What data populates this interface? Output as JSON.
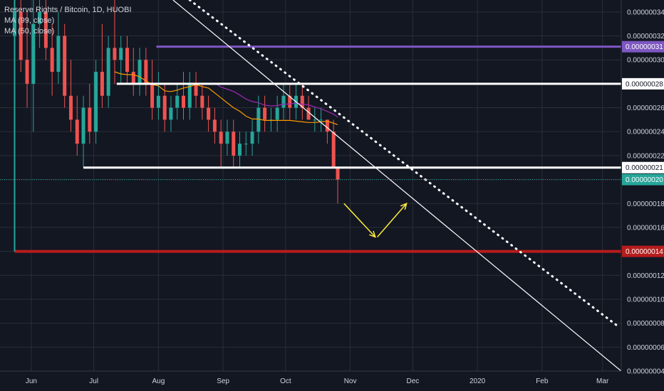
{
  "legend": {
    "symbol": "Reserve Rights / Bitcoin, 1D, HUOBI",
    "ma99": "MA (99, close)",
    "ma50": "MA (50, close)"
  },
  "colors": {
    "background": "#131722",
    "grid": "#2a2e39",
    "up": "#26a69a",
    "down": "#ef5350",
    "ma99": "#9c27b0",
    "ma50": "#ff9800",
    "resistance": "#7e57c2",
    "support_major": "#b71c1c",
    "arrows": "#ffeb3b",
    "trendline": "#ffffff",
    "last_price": "#26a69a"
  },
  "chart_data": {
    "type": "candlestick",
    "title": "Reserve Rights / Bitcoin, 1D, HUOBI",
    "x_ticks": [
      "Jun",
      "Jul",
      "Aug",
      "Sep",
      "Oct",
      "Nov",
      "Dec",
      "2020",
      "Feb",
      "Mar"
    ],
    "x_tick_dates": [
      "2019-06-01",
      "2019-07-01",
      "2019-08-01",
      "2019-09-01",
      "2019-10-01",
      "2019-11-01",
      "2019-12-01",
      "2020-01-01",
      "2020-02-01",
      "2020-03-01"
    ],
    "x_range": [
      "2019-05-17",
      "2020-03-10"
    ],
    "y_ticks": [
      "0.00000034",
      "0.00000032",
      "0.00000030",
      "0.00000028",
      "0.00000026",
      "0.00000024",
      "0.00000022",
      "0.00000020",
      "0.00000018",
      "0.00000016",
      "0.00000014",
      "0.00000012",
      "0.00000010",
      "0.00000008",
      "0.00000006",
      "0.00000004"
    ],
    "ylim": [
      4e-08,
      3.5e-07
    ],
    "grid": true,
    "series": [
      {
        "name": "MA (99, close)"
      },
      {
        "name": "MA (50, close)"
      }
    ],
    "price_tags": [
      {
        "label": "0.00000031",
        "value": 3.11e-07,
        "kind": "resistance"
      },
      {
        "label": "0.00000028",
        "value": 2.8e-07,
        "kind": "white-line"
      },
      {
        "label": "0.00000021",
        "value": 2.1e-07,
        "kind": "white-line"
      },
      {
        "label": "0.00000020",
        "value": 2e-07,
        "kind": "last-price"
      },
      {
        "label": "0.00000014",
        "value": 1.4e-07,
        "kind": "support"
      }
    ],
    "horizontal_lines": [
      {
        "value": 3.11e-07,
        "from": "2019-07-31",
        "to": "2020-03-10",
        "style": "resistance"
      },
      {
        "value": 2.8e-07,
        "from": "2019-07-12",
        "to": "2020-03-10",
        "style": "white"
      },
      {
        "value": 2.1e-07,
        "from": "2019-06-26",
        "to": "2020-03-10",
        "style": "white"
      },
      {
        "value": 1.4e-07,
        "from": "2019-05-24",
        "to": "2020-03-10",
        "style": "support"
      }
    ],
    "vertical_marker": {
      "date": "2019-05-24",
      "from": 1.4e-07,
      "to": 3.5e-07
    },
    "trendlines": [
      {
        "style": "solid",
        "from": [
          "2019-08-08",
          3.5e-07
        ],
        "to": [
          "2020-03-10",
          4e-08
        ]
      },
      {
        "style": "dotted",
        "from": [
          "2019-08-16",
          3.5e-07
        ],
        "to": [
          "2020-03-08",
          7.8e-08
        ]
      }
    ],
    "arrows": [
      {
        "from": [
          "2019-10-29",
          1.8e-07
        ],
        "to": [
          "2019-11-13",
          1.52e-07
        ]
      },
      {
        "from": [
          "2019-11-14",
          1.52e-07
        ],
        "to": [
          "2019-11-28",
          1.8e-07
        ]
      }
    ],
    "candles": [
      [
        "2019-05-24",
        3.2e-07,
        3.6e-07,
        3e-07,
        3.4e-07
      ],
      [
        "2019-05-27",
        3.4e-07,
        3.6e-07,
        2.9e-07,
        3e-07
      ],
      [
        "2019-05-30",
        3e-07,
        3.4e-07,
        2.6e-07,
        2.8e-07
      ],
      [
        "2019-06-02",
        2.8e-07,
        3.5e-07,
        2.4e-07,
        3.3e-07
      ],
      [
        "2019-06-05",
        3.3e-07,
        3.6e-07,
        3.1e-07,
        3.4e-07
      ],
      [
        "2019-06-08",
        3.4e-07,
        3.6e-07,
        3e-07,
        3.1e-07
      ],
      [
        "2019-06-11",
        3.1e-07,
        3.3e-07,
        2.7e-07,
        2.9e-07
      ],
      [
        "2019-06-14",
        2.9e-07,
        3.4e-07,
        2.8e-07,
        3.2e-07
      ],
      [
        "2019-06-17",
        3.2e-07,
        3.3e-07,
        2.6e-07,
        2.7e-07
      ],
      [
        "2019-06-20",
        2.7e-07,
        3e-07,
        2.4e-07,
        2.5e-07
      ],
      [
        "2019-06-23",
        2.5e-07,
        2.7e-07,
        2.2e-07,
        2.3e-07
      ],
      [
        "2019-06-26",
        2.3e-07,
        2.7e-07,
        2.1e-07,
        2.6e-07
      ],
      [
        "2019-06-29",
        2.6e-07,
        2.8e-07,
        2.3e-07,
        2.4e-07
      ],
      [
        "2019-07-02",
        2.4e-07,
        3e-07,
        2.3e-07,
        2.9e-07
      ],
      [
        "2019-07-05",
        2.9e-07,
        3.3e-07,
        2.6e-07,
        2.7e-07
      ],
      [
        "2019-07-08",
        2.7e-07,
        3.2e-07,
        2.6e-07,
        3.1e-07
      ],
      [
        "2019-07-11",
        3.1e-07,
        3.6e-07,
        2.8e-07,
        3e-07
      ],
      [
        "2019-07-14",
        3e-07,
        3.2e-07,
        2.8e-07,
        3.1e-07
      ],
      [
        "2019-07-17",
        3.1e-07,
        3.2e-07,
        2.8e-07,
        2.9e-07
      ],
      [
        "2019-07-20",
        2.9e-07,
        3.1e-07,
        2.7e-07,
        2.8e-07
      ],
      [
        "2019-07-23",
        2.8e-07,
        3.1e-07,
        2.7e-07,
        3e-07
      ],
      [
        "2019-07-26",
        3e-07,
        3.1e-07,
        2.7e-07,
        2.8e-07
      ],
      [
        "2019-07-29",
        2.8e-07,
        3e-07,
        2.5e-07,
        2.6e-07
      ],
      [
        "2019-08-01",
        2.6e-07,
        2.9e-07,
        2.5e-07,
        2.7e-07
      ],
      [
        "2019-08-04",
        2.7e-07,
        2.8e-07,
        2.4e-07,
        2.5e-07
      ],
      [
        "2019-08-07",
        2.5e-07,
        2.7e-07,
        2.4e-07,
        2.6e-07
      ],
      [
        "2019-08-10",
        2.6e-07,
        2.8e-07,
        2.5e-07,
        2.7e-07
      ],
      [
        "2019-08-13",
        2.7e-07,
        2.9e-07,
        2.5e-07,
        2.6e-07
      ],
      [
        "2019-08-16",
        2.6e-07,
        2.9e-07,
        2.5e-07,
        2.8e-07
      ],
      [
        "2019-08-19",
        2.8e-07,
        2.9e-07,
        2.6e-07,
        2.7e-07
      ],
      [
        "2019-08-22",
        2.7e-07,
        2.8e-07,
        2.5e-07,
        2.6e-07
      ],
      [
        "2019-08-25",
        2.6e-07,
        2.7e-07,
        2.4e-07,
        2.5e-07
      ],
      [
        "2019-08-28",
        2.5e-07,
        2.6e-07,
        2.3e-07,
        2.4e-07
      ],
      [
        "2019-08-31",
        2.4e-07,
        2.5e-07,
        2.1e-07,
        2.3e-07
      ],
      [
        "2019-09-03",
        2.3e-07,
        2.5e-07,
        2.2e-07,
        2.4e-07
      ],
      [
        "2019-09-06",
        2.4e-07,
        2.5e-07,
        2.1e-07,
        2.2e-07
      ],
      [
        "2019-09-09",
        2.2e-07,
        2.4e-07,
        2.1e-07,
        2.3e-07
      ],
      [
        "2019-09-12",
        2.3e-07,
        2.4e-07,
        2.2e-07,
        2.3e-07
      ],
      [
        "2019-09-15",
        2.3e-07,
        2.5e-07,
        2.2e-07,
        2.4e-07
      ],
      [
        "2019-09-18",
        2.4e-07,
        2.7e-07,
        2.3e-07,
        2.6e-07
      ],
      [
        "2019-09-21",
        2.6e-07,
        2.7e-07,
        2.4e-07,
        2.5e-07
      ],
      [
        "2019-09-24",
        2.5e-07,
        2.6e-07,
        2.4e-07,
        2.5e-07
      ],
      [
        "2019-09-27",
        2.5e-07,
        2.7e-07,
        2.4e-07,
        2.6e-07
      ],
      [
        "2019-09-30",
        2.6e-07,
        2.8e-07,
        2.5e-07,
        2.7e-07
      ],
      [
        "2019-10-03",
        2.7e-07,
        2.8e-07,
        2.5e-07,
        2.6e-07
      ],
      [
        "2019-10-06",
        2.6e-07,
        2.8e-07,
        2.5e-07,
        2.7e-07
      ],
      [
        "2019-10-09",
        2.7e-07,
        2.8e-07,
        2.5e-07,
        2.6e-07
      ],
      [
        "2019-10-12",
        2.6e-07,
        2.7e-07,
        2.5e-07,
        2.5e-07
      ],
      [
        "2019-10-15",
        2.5e-07,
        2.6e-07,
        2.4e-07,
        2.5e-07
      ],
      [
        "2019-10-18",
        2.5e-07,
        2.6e-07,
        2.4e-07,
        2.5e-07
      ],
      [
        "2019-10-21",
        2.5e-07,
        2.5e-07,
        2.3e-07,
        2.4e-07
      ],
      [
        "2019-10-24",
        2.4e-07,
        2.5e-07,
        2.1e-07,
        2.1e-07
      ],
      [
        "2019-10-26",
        2.1e-07,
        2.1e-07,
        1.8e-07,
        2e-07
      ]
    ]
  }
}
